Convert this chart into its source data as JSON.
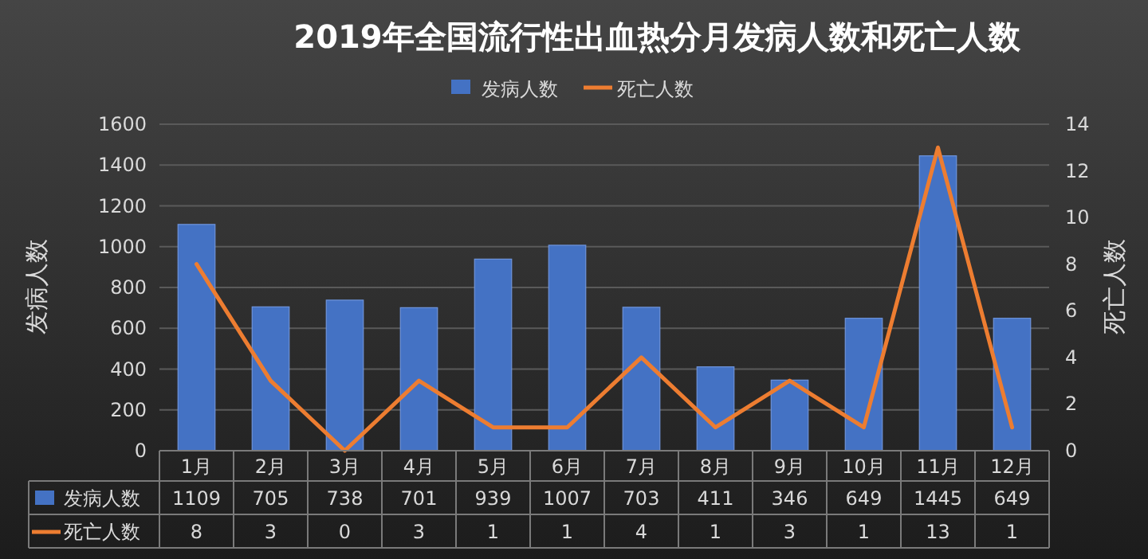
{
  "chart_data": {
    "type": "bar",
    "title": "2019年全国流行性出血热分月发病人数和死亡人数",
    "categories": [
      "1月",
      "2月",
      "3月",
      "4月",
      "5月",
      "6月",
      "7月",
      "8月",
      "9月",
      "10月",
      "11月",
      "12月"
    ],
    "series": [
      {
        "name": "发病人数",
        "color": "#4472c4",
        "values": [
          1109,
          705,
          738,
          701,
          939,
          1007,
          703,
          411,
          346,
          649,
          1445,
          649
        ]
      },
      {
        "name": "死亡人数",
        "type": "line",
        "axis": "y2",
        "color": "#ed7d31",
        "values": [
          8,
          3,
          0,
          3,
          1,
          1,
          4,
          1,
          3,
          1,
          13,
          1
        ]
      }
    ],
    "ylabel": "发病人数",
    "y2label": "死亡人数",
    "ylim": [
      0,
      1600
    ],
    "yticks": [
      0,
      200,
      400,
      600,
      800,
      1000,
      1200,
      1400,
      1600
    ],
    "y2lim": [
      0,
      14
    ],
    "y2ticks": [
      0,
      2,
      4,
      6,
      8,
      10,
      12,
      14
    ],
    "grid": "y",
    "legend": "top",
    "data_labels": true
  }
}
